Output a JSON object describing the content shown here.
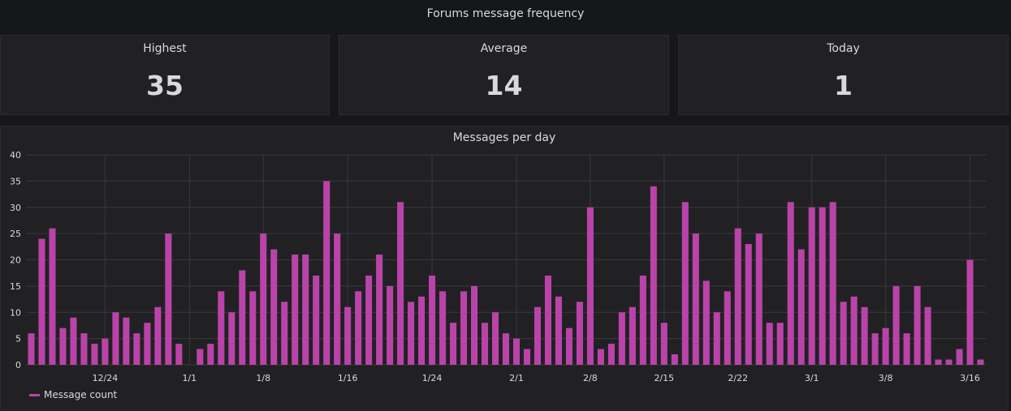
{
  "dashboard": {
    "title": "Forums message frequency"
  },
  "stats": [
    {
      "label": "Highest",
      "value": "35"
    },
    {
      "label": "Average",
      "value": "14"
    },
    {
      "label": "Today",
      "value": "1"
    }
  ],
  "colors": {
    "series": "#ba43a9",
    "grid": "#39393d",
    "axis_text": "#d8d9da"
  },
  "chart_data": {
    "type": "bar",
    "title": "Messages per day",
    "xlabel": "",
    "ylabel": "",
    "ylim": [
      0,
      40
    ],
    "yticks": [
      0,
      5,
      10,
      15,
      20,
      25,
      30,
      35,
      40
    ],
    "x_tick_labels": [
      {
        "index": 7,
        "label": "12/24"
      },
      {
        "index": 15,
        "label": "1/1"
      },
      {
        "index": 22,
        "label": "1/8"
      },
      {
        "index": 30,
        "label": "1/16"
      },
      {
        "index": 38,
        "label": "1/24"
      },
      {
        "index": 46,
        "label": "2/1"
      },
      {
        "index": 53,
        "label": "2/8"
      },
      {
        "index": 60,
        "label": "2/15"
      },
      {
        "index": 67,
        "label": "2/22"
      },
      {
        "index": 74,
        "label": "3/1"
      },
      {
        "index": 81,
        "label": "3/8"
      },
      {
        "index": 89,
        "label": "3/16"
      }
    ],
    "grid": true,
    "legend_position": "bottom-left",
    "series": [
      {
        "name": "Message count",
        "values": [
          6,
          24,
          26,
          7,
          9,
          6,
          4,
          5,
          10,
          9,
          6,
          8,
          11,
          25,
          4,
          0,
          3,
          4,
          14,
          10,
          18,
          14,
          25,
          22,
          12,
          21,
          21,
          17,
          35,
          25,
          11,
          14,
          17,
          21,
          15,
          31,
          12,
          13,
          17,
          14,
          8,
          14,
          15,
          8,
          10,
          6,
          5,
          3,
          11,
          17,
          13,
          7,
          12,
          30,
          3,
          4,
          10,
          11,
          17,
          34,
          8,
          2,
          31,
          25,
          16,
          10,
          14,
          26,
          23,
          25,
          8,
          8,
          31,
          22,
          30,
          30,
          31,
          12,
          13,
          11,
          6,
          7,
          15,
          6,
          15,
          11,
          1,
          1,
          3,
          20,
          1
        ]
      }
    ]
  }
}
